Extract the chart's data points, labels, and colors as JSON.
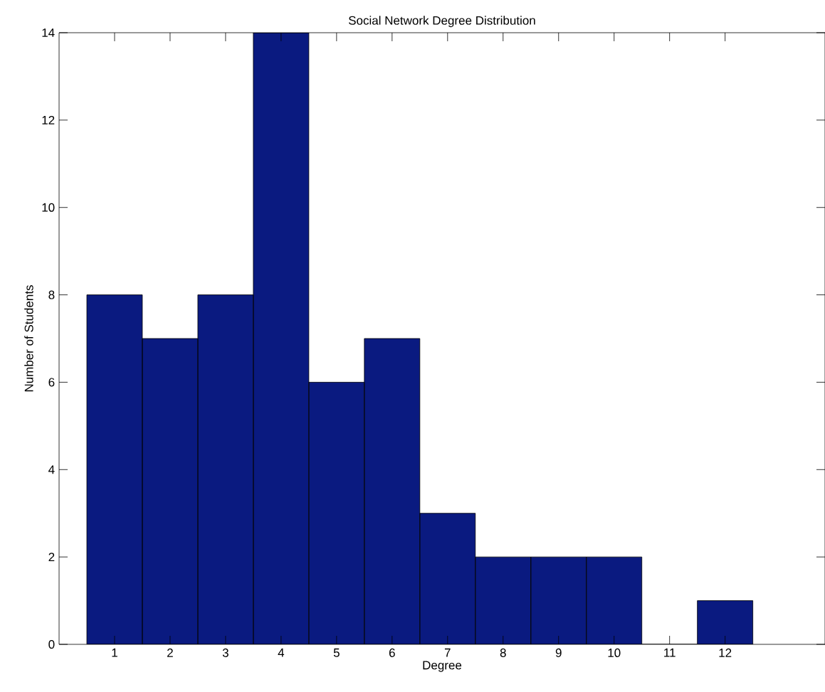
{
  "chart_data": {
    "type": "histogram",
    "title": "Social Network Degree Distribution",
    "xlabel": "Degree",
    "ylabel": "Number of Students",
    "bins": [
      0.5,
      1.5,
      2.5,
      3.5,
      4.5,
      5.5,
      6.5,
      7.5,
      8.5,
      9.5,
      10.5,
      11.5,
      12.5
    ],
    "values": [
      8,
      7,
      8,
      14,
      6,
      7,
      3,
      2,
      2,
      2,
      0,
      1
    ],
    "color": "#0a1a80",
    "xlim": [
      0,
      13.8
    ],
    "ylim": [
      0,
      14
    ],
    "xticks": [
      1,
      2,
      3,
      4,
      5,
      6,
      7,
      8,
      9,
      10,
      11,
      12
    ],
    "yticks": [
      0,
      2,
      4,
      6,
      8,
      10,
      12,
      14
    ]
  }
}
